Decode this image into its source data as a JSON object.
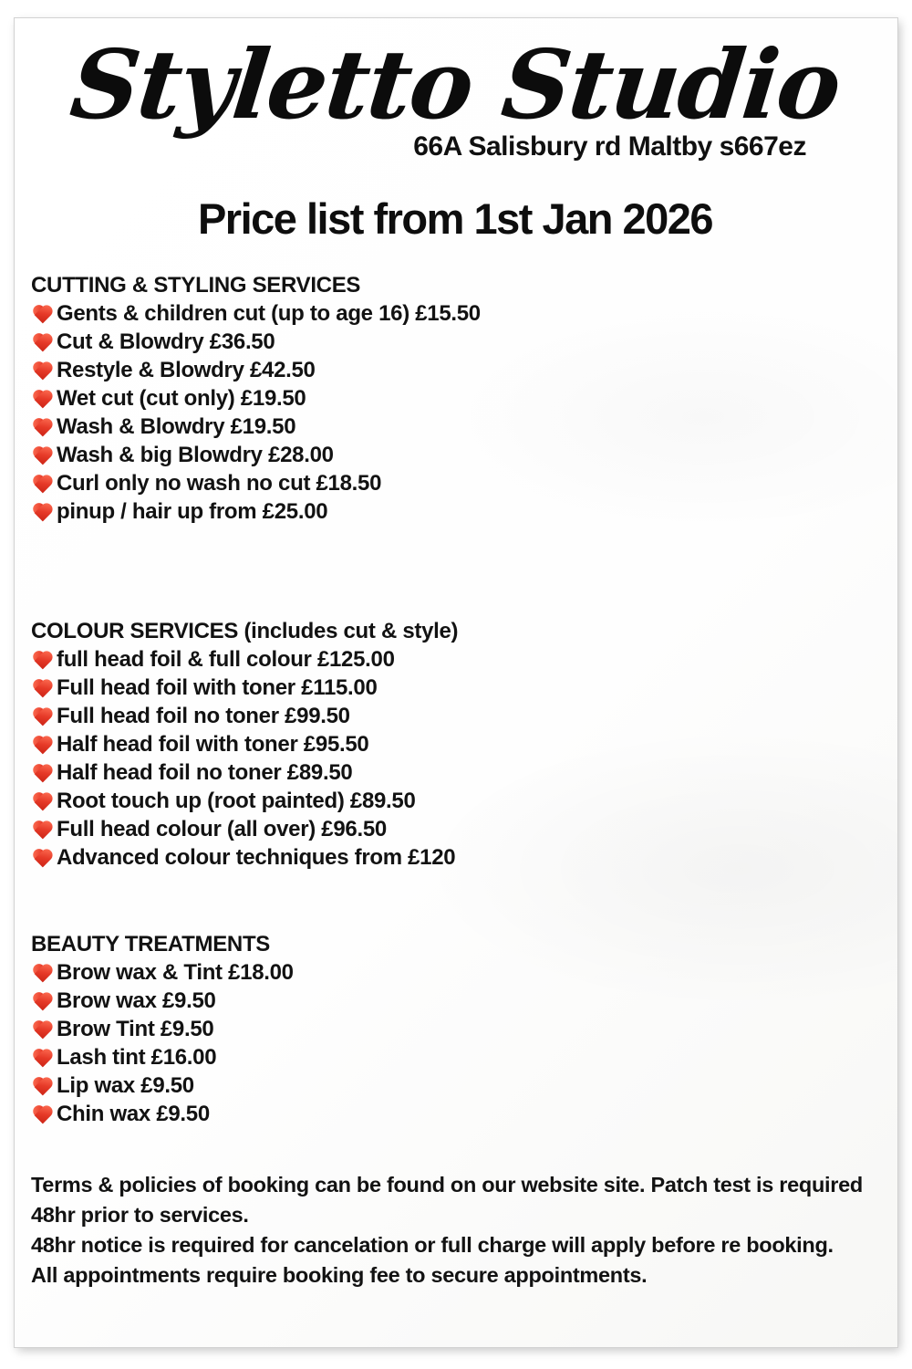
{
  "page": {
    "logo_text": "Styletto Studio",
    "address": "66A Salisbury rd Maltby s667ez",
    "title": "Price list from 1st Jan 2026"
  },
  "icons": {
    "heart": "red-heart"
  },
  "colors": {
    "heart_red": "#e63a28",
    "text": "#121212",
    "sheet_background": "#ffffff",
    "edge_grey": "#d2d2d2"
  },
  "sections": [
    {
      "heading": "CUTTING & STYLING SERVICES",
      "items": [
        "Gents & children cut (up to age 16) £15.50",
        "Cut & Blowdry £36.50",
        "Restyle & Blowdry £42.50",
        "Wet cut (cut only) £19.50",
        "Wash & Blowdry £19.50",
        "Wash & big Blowdry £28.00",
        "Curl only no wash no cut £18.50",
        "pinup / hair up from £25.00"
      ]
    },
    {
      "heading": "COLOUR SERVICES (includes cut & style)",
      "items": [
        "full head foil & full colour £125.00",
        "Full head foil with toner £115.00",
        "Full head foil no toner £99.50",
        "Half head foil with toner £95.50",
        "Half head foil no toner £89.50",
        "Root touch up (root painted) £89.50",
        "Full head colour (all over) £96.50",
        "Advanced colour techniques from £120"
      ]
    },
    {
      "heading": "BEAUTY TREATMENTS",
      "items": [
        "Brow wax & Tint £18.00",
        "Brow wax £9.50",
        "Brow Tint £9.50",
        "Lash tint £16.00",
        "Lip wax £9.50",
        "Chin wax £9.50"
      ]
    }
  ],
  "terms": {
    "lines": [
      "Terms & policies of booking can be found on our website site. Patch test is required 48hr prior to services.",
      "48hr notice is required for cancelation or full charge will apply before re booking.",
      "All appointments require booking fee to secure appointments."
    ]
  }
}
